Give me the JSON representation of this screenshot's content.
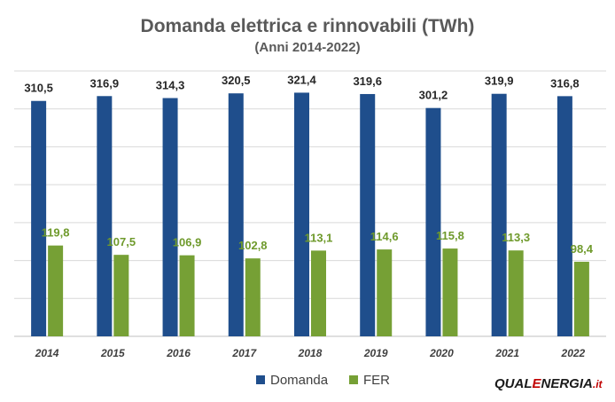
{
  "chart_data": {
    "type": "bar",
    "title": "Domanda elettrica e rinnovabili (TWh)",
    "subtitle": "(Anni 2014-2022)",
    "categories": [
      "2014",
      "2015",
      "2016",
      "2017",
      "2018",
      "2019",
      "2020",
      "2021",
      "2022"
    ],
    "series": [
      {
        "name": "Domanda",
        "color": "#1f4e8c",
        "values": [
          310.5,
          316.9,
          314.3,
          320.5,
          321.4,
          319.6,
          301.2,
          319.9,
          316.8
        ],
        "labels": [
          "310,5",
          "316,9",
          "314,3",
          "320,5",
          "321,4",
          "319,6",
          "301,2",
          "319,9",
          "316,8"
        ]
      },
      {
        "name": "FER",
        "color": "#76a035",
        "values": [
          119.8,
          107.5,
          106.9,
          102.8,
          113.1,
          114.6,
          115.8,
          113.3,
          98.4
        ],
        "labels": [
          "119,8",
          "107,5",
          "106,9",
          "102,8",
          "113,1",
          "114,6",
          "115,8",
          "113,3",
          "98,4"
        ]
      }
    ],
    "ylim": [
      0,
      350
    ],
    "grid": true,
    "legend": "bottom"
  },
  "logo": {
    "part1": "QUAL",
    "part2": "E",
    "part3": "NERGIA",
    "part4": ".it"
  }
}
